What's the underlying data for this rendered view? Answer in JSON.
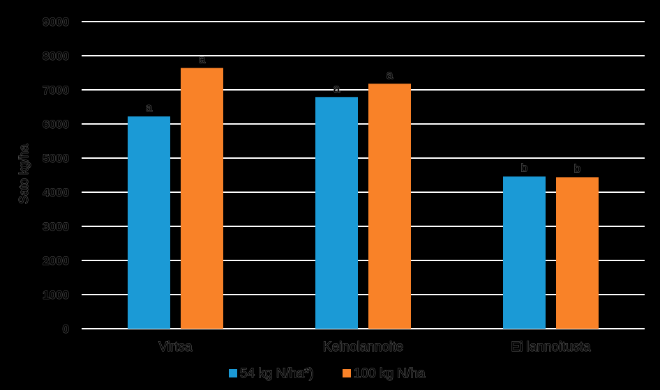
{
  "chart_data": {
    "type": "bar",
    "title": "",
    "xlabel": "",
    "ylabel": "Sato kg/ha",
    "ylim": [
      0,
      9000
    ],
    "yticks": [
      0,
      1000,
      2000,
      3000,
      4000,
      5000,
      6000,
      7000,
      8000,
      9000
    ],
    "categories": [
      "Virtsa",
      "Keinolannoite",
      "Ei lannoitusta"
    ],
    "series": [
      {
        "name": "54 kg N/ha*)",
        "color": "#1b9ad6",
        "values": [
          6220,
          6790,
          4460
        ],
        "labels": [
          "a",
          "a",
          "b"
        ]
      },
      {
        "name": "100 kg N/ha",
        "color": "#f98228",
        "values": [
          7640,
          7180,
          4440
        ],
        "labels": [
          "a",
          "a",
          "b"
        ]
      }
    ],
    "grid": true,
    "legend": "bottom"
  }
}
